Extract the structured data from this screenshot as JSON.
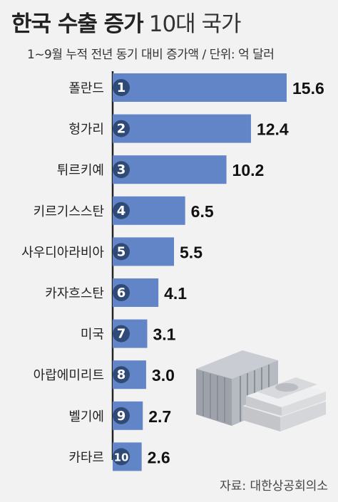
{
  "header": {
    "title": "한국 수출 증가",
    "title_suffix": "10대 국가",
    "subtitle": "1~9월 누적 전년 동기 대비 증가액 / 단위: 억 달러"
  },
  "source": "자료: 대한상공회의소",
  "colors": {
    "bar": "#6185c6",
    "badge": "#2f4a77",
    "background": "#f2f2f2",
    "axis": "#222222"
  },
  "chart_data": {
    "type": "bar",
    "orientation": "horizontal",
    "title": "한국 수출 증가 10대 국가",
    "subtitle": "1~9월 누적 전년 동기 대비 증가액 / 단위: 억 달러",
    "categories": [
      "폴란드",
      "헝가리",
      "튀르키예",
      "키르기스스탄",
      "사우디아라비아",
      "카자흐스탄",
      "미국",
      "아랍에미리트",
      "벨기에",
      "카타르"
    ],
    "ranks": [
      "1",
      "2",
      "3",
      "4",
      "5",
      "6",
      "7",
      "8",
      "9",
      "10"
    ],
    "values": [
      15.6,
      12.4,
      10.2,
      6.5,
      5.5,
      4.1,
      3.1,
      3.0,
      2.7,
      2.6
    ],
    "value_labels": [
      "15.6",
      "12.4",
      "10.2",
      "6.5",
      "5.5",
      "4.1",
      "3.1",
      "3.0",
      "2.7",
      "2.6"
    ],
    "xlim": [
      0,
      16.5
    ],
    "grid": false,
    "legend": "none"
  },
  "decoration": {
    "icons": [
      "shipping-container-icon",
      "money-stack-icon"
    ]
  }
}
